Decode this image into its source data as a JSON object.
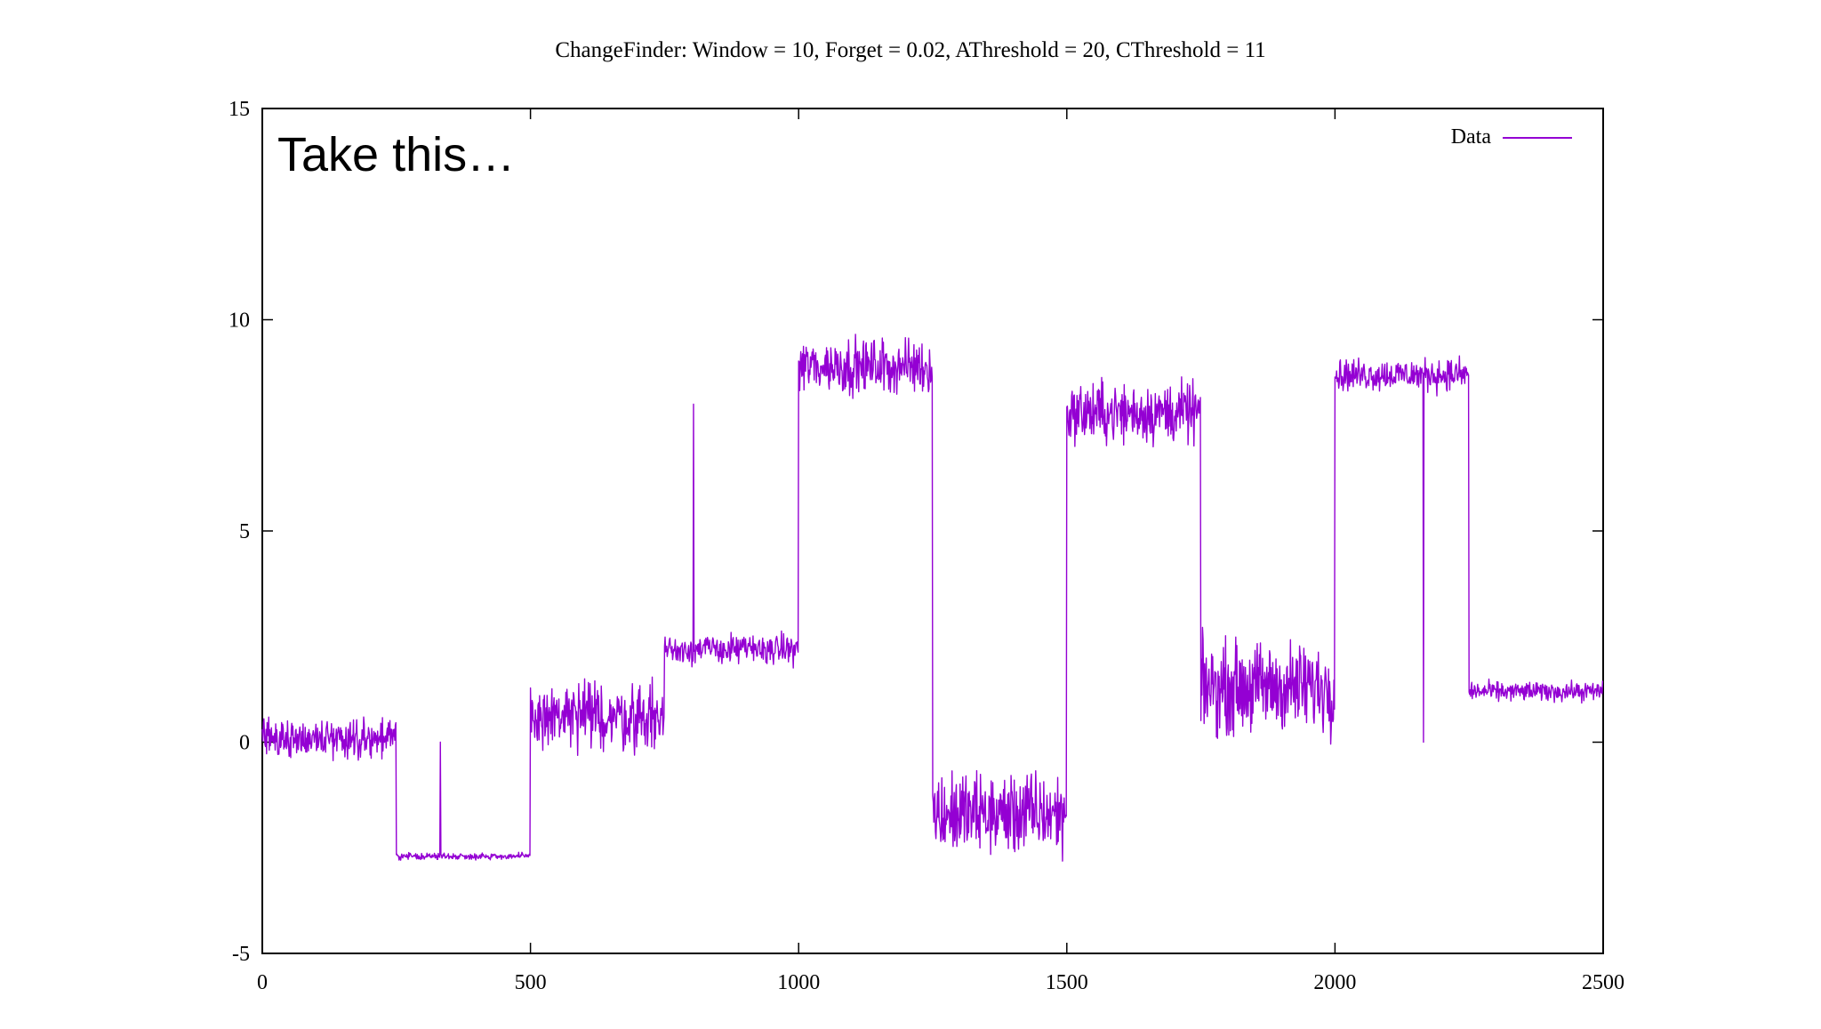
{
  "chart_data": {
    "type": "line",
    "title": "ChangeFinder: Window = 10, Forget = 0.02, AThreshold = 20, CThreshold = 11",
    "annotation": "Take this…",
    "xlabel": "",
    "ylabel": "",
    "xlim": [
      0,
      2500
    ],
    "ylim": [
      -5,
      15
    ],
    "x_ticks": [
      0,
      500,
      1000,
      1500,
      2000,
      2500
    ],
    "x_tick_labels": [
      "0",
      "500",
      "1000",
      "1500",
      "2000",
      "2500"
    ],
    "y_ticks": [
      -5,
      0,
      5,
      10,
      15
    ],
    "y_tick_labels": [
      "-5",
      "0",
      "5",
      "10",
      "15"
    ],
    "grid": false,
    "legend_position": "top-right",
    "series_color": "#9400d3",
    "series": [
      {
        "name": "Data",
        "segments": [
          {
            "x_start": 0,
            "x_end": 250,
            "mean": 0.1,
            "noise_range": [
              -1.1,
              1.2
            ]
          },
          {
            "x_start": 250,
            "x_end": 500,
            "mean": -2.7,
            "noise_range": [
              -2.9,
              -2.5
            ]
          },
          {
            "x_start": 500,
            "x_end": 750,
            "mean": 0.6,
            "noise_range": [
              -1.5,
              2.7
            ]
          },
          {
            "x_start": 750,
            "x_end": 1000,
            "mean": 2.2,
            "noise_range": [
              1.3,
              3.0
            ]
          },
          {
            "x_start": 1000,
            "x_end": 1250,
            "mean": 8.9,
            "noise_range": [
              7.2,
              10.4
            ]
          },
          {
            "x_start": 1250,
            "x_end": 1500,
            "mean": -1.7,
            "noise_range": [
              -3.4,
              0.9
            ]
          },
          {
            "x_start": 1500,
            "x_end": 1750,
            "mean": 7.8,
            "noise_range": [
              5.9,
              9.7
            ]
          },
          {
            "x_start": 1750,
            "x_end": 2000,
            "mean": 1.3,
            "noise_range": [
              -1.5,
              3.8
            ]
          },
          {
            "x_start": 2000,
            "x_end": 2250,
            "mean": 8.7,
            "noise_range": [
              7.7,
              9.5
            ]
          },
          {
            "x_start": 2250,
            "x_end": 2500,
            "mean": 1.2,
            "noise_range": [
              0.6,
              1.6
            ]
          }
        ],
        "spikes": [
          {
            "x": 332,
            "y": 0.0
          },
          {
            "x": 804,
            "y": 8.0
          },
          {
            "x": 2165,
            "y": 0.0
          }
        ]
      }
    ]
  }
}
